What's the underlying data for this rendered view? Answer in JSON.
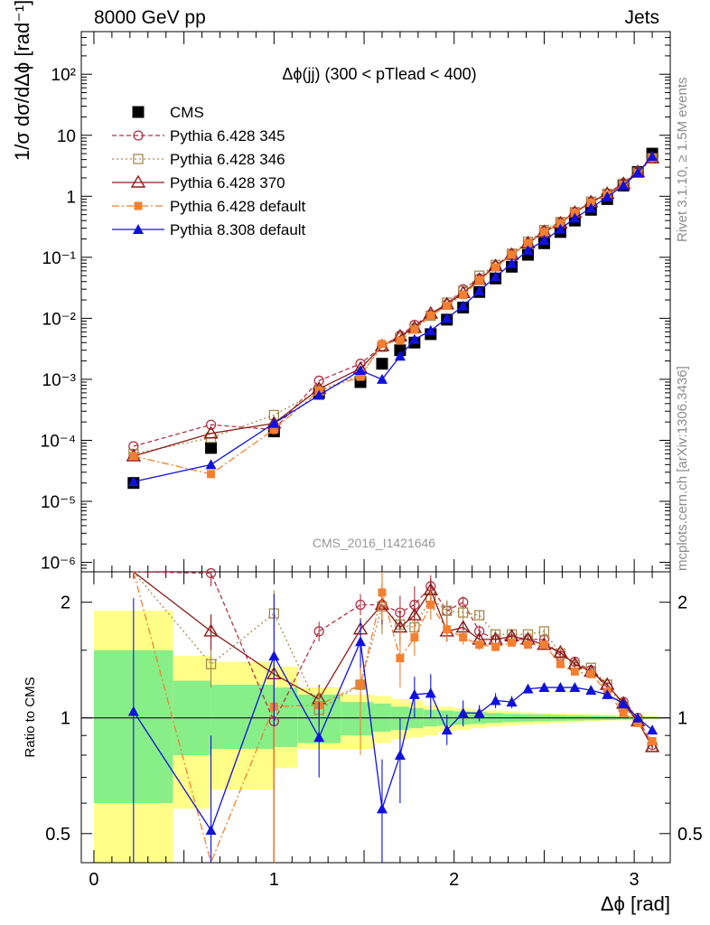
{
  "header": {
    "left": "8000 GeV pp",
    "right": "Jets",
    "side_top": "Rivet 3.1.10, ≥ 1.5M events",
    "side_bottom": "mcplots.cern.ch [arXiv:1306.3436]"
  },
  "chart_data": [
    {
      "type": "scatter",
      "panel": "main",
      "title": "Δϕ(jj) (300 < pTlead <  400)",
      "watermark": "CMS_2016_I1421646",
      "ylabel": "1/σ dσ/dΔϕ [rad⁻¹]",
      "yscale": "log",
      "ylim": [
        7e-07,
        500
      ],
      "xlim": [
        -0.07,
        3.2
      ],
      "y_tick_labels": [
        "10⁻⁶",
        "10⁻⁵",
        "10⁻⁴",
        "10⁻³",
        "10⁻²",
        "10⁻¹",
        "1",
        "10",
        "10²"
      ],
      "legend_position": "top-left",
      "series": [
        {
          "name": "CMS",
          "color": "#000000",
          "marker": "filled-square",
          "line": "none",
          "x": [
            0.22,
            0.65,
            1.0,
            1.25,
            1.48,
            1.6,
            1.7,
            1.78,
            1.87,
            1.96,
            2.05,
            2.14,
            2.23,
            2.32,
            2.41,
            2.5,
            2.59,
            2.67,
            2.76,
            2.85,
            2.94,
            3.02,
            3.1
          ],
          "y": [
            2e-05,
            7.5e-05,
            0.00014,
            0.0006,
            0.0009,
            0.0018,
            0.003,
            0.004,
            0.0055,
            0.0095,
            0.015,
            0.027,
            0.045,
            0.07,
            0.11,
            0.17,
            0.26,
            0.4,
            0.6,
            0.9,
            1.5,
            2.5,
            5.0
          ]
        },
        {
          "name": "Pythia 6.428 345",
          "color": "#b23246",
          "marker": "open-circle",
          "line": "dashed",
          "x": [
            0.22,
            0.65,
            1.0,
            1.25,
            1.48,
            1.6,
            1.7,
            1.78,
            1.87,
            1.96,
            2.05,
            2.14,
            2.23,
            2.32,
            2.41,
            2.5,
            2.59,
            2.67,
            2.76,
            2.85,
            2.94,
            3.02,
            3.1
          ],
          "y": [
            8e-05,
            0.00018,
            0.00015,
            0.00095,
            0.0018,
            0.0035,
            0.0052,
            0.0078,
            0.0115,
            0.017,
            0.03,
            0.045,
            0.072,
            0.112,
            0.17,
            0.27,
            0.37,
            0.55,
            0.8,
            1.1,
            1.65,
            2.5,
            4.2
          ]
        },
        {
          "name": "Pythia 6.428 346",
          "color": "#a68a4a",
          "marker": "open-square",
          "line": "dotted",
          "x": [
            0.22,
            0.65,
            1.0,
            1.25,
            1.48,
            1.6,
            1.7,
            1.78,
            1.87,
            1.96,
            2.05,
            2.14,
            2.23,
            2.32,
            2.41,
            2.5,
            2.59,
            2.67,
            2.76,
            2.85,
            2.94,
            3.02,
            3.1
          ],
          "y": [
            6e-05,
            0.00011,
            0.00026,
            0.00065,
            0.0012,
            0.0034,
            0.0048,
            0.0068,
            0.011,
            0.018,
            0.028,
            0.05,
            0.075,
            0.115,
            0.18,
            0.28,
            0.38,
            0.55,
            0.82,
            1.1,
            1.6,
            2.45,
            4.2
          ]
        },
        {
          "name": "Pythia 6.428 370",
          "color": "#8b1a1a",
          "marker": "open-triangle",
          "line": "solid",
          "x": [
            0.22,
            0.65,
            1.0,
            1.25,
            1.48,
            1.6,
            1.7,
            1.78,
            1.87,
            1.96,
            2.05,
            2.14,
            2.23,
            2.32,
            2.41,
            2.5,
            2.59,
            2.67,
            2.76,
            2.85,
            2.94,
            3.02,
            3.1
          ],
          "y": [
            5.5e-05,
            0.00013,
            0.00019,
            0.0007,
            0.0015,
            0.0035,
            0.0051,
            0.007,
            0.012,
            0.017,
            0.026,
            0.043,
            0.072,
            0.11,
            0.17,
            0.26,
            0.36,
            0.54,
            0.8,
            1.1,
            1.6,
            2.5,
            4.2
          ]
        },
        {
          "name": "Pythia 6.428 default",
          "color": "#f28030",
          "marker": "filled-square-small",
          "line": "dashdot",
          "x": [
            0.22,
            0.65,
            1.0,
            1.25,
            1.48,
            1.6,
            1.7,
            1.78,
            1.87,
            1.96,
            2.05,
            2.14,
            2.23,
            2.32,
            2.41,
            2.5,
            2.59,
            2.67,
            2.76,
            2.85,
            2.94,
            3.02,
            3.1
          ],
          "y": [
            5.5e-05,
            2.8e-05,
            0.00015,
            0.00065,
            0.0011,
            0.0038,
            0.0043,
            0.0065,
            0.011,
            0.016,
            0.024,
            0.042,
            0.068,
            0.11,
            0.17,
            0.26,
            0.36,
            0.53,
            0.78,
            1.05,
            1.55,
            2.4,
            4.3
          ]
        },
        {
          "name": "Pythia 8.308 default",
          "color": "#1010e0",
          "marker": "filled-triangle",
          "line": "solid",
          "x": [
            0.22,
            0.65,
            1.0,
            1.25,
            1.48,
            1.6,
            1.7,
            1.78,
            1.87,
            1.96,
            2.05,
            2.14,
            2.23,
            2.32,
            2.41,
            2.5,
            2.59,
            2.67,
            2.76,
            2.85,
            2.94,
            3.02,
            3.1
          ],
          "y": [
            2.1e-05,
            4e-05,
            0.00019,
            0.00055,
            0.0014,
            0.001,
            0.0024,
            0.0045,
            0.0063,
            0.01,
            0.016,
            0.028,
            0.048,
            0.079,
            0.13,
            0.19,
            0.29,
            0.44,
            0.64,
            0.98,
            1.5,
            2.45,
            4.5
          ]
        }
      ]
    },
    {
      "type": "scatter",
      "panel": "ratio",
      "xlabel": "Δϕ [rad]",
      "ylabel": "Ratio to CMS",
      "yscale": "log",
      "ylim": [
        0.42,
        2.4
      ],
      "xlim": [
        -0.07,
        3.2
      ],
      "x_tick_labels": [
        "0",
        "1",
        "2",
        "3"
      ],
      "y_tick_labels": [
        "0.5",
        "1",
        "2"
      ],
      "reference_line": 1,
      "bands": {
        "colors": {
          "stat": "#88ee88",
          "total": "#ffff88"
        },
        "edges": [
          0.0,
          0.44,
          0.65,
          1.0,
          1.13,
          1.37,
          1.55,
          1.65,
          1.75,
          1.83,
          1.91,
          2.0,
          2.09,
          2.18,
          2.27,
          2.36,
          2.45,
          2.54,
          2.63,
          2.72,
          2.81,
          2.9,
          2.99,
          3.06,
          3.14
        ],
        "stat_lo": [
          0.6,
          0.8,
          0.83,
          0.84,
          0.86,
          0.9,
          0.92,
          0.93,
          0.94,
          0.95,
          0.955,
          0.96,
          0.965,
          0.97,
          0.975,
          0.978,
          0.98,
          0.982,
          0.984,
          0.986,
          0.988,
          0.99,
          0.992,
          0.994
        ],
        "stat_hi": [
          1.5,
          1.25,
          1.22,
          1.2,
          1.15,
          1.1,
          1.09,
          1.07,
          1.06,
          1.05,
          1.045,
          1.04,
          1.035,
          1.03,
          1.025,
          1.022,
          1.02,
          1.018,
          1.016,
          1.014,
          1.012,
          1.01,
          1.008,
          1.006
        ],
        "total_lo": [
          0.36,
          0.58,
          0.65,
          0.74,
          0.83,
          0.83,
          0.86,
          0.88,
          0.89,
          0.9,
          0.92,
          0.93,
          0.94,
          0.95,
          0.955,
          0.96,
          0.965,
          0.97,
          0.975,
          0.98,
          0.983,
          0.985,
          0.988,
          0.99
        ],
        "total_hi": [
          1.9,
          1.45,
          1.4,
          1.36,
          1.2,
          1.15,
          1.14,
          1.12,
          1.11,
          1.08,
          1.07,
          1.06,
          1.05,
          1.045,
          1.04,
          1.035,
          1.03,
          1.028,
          1.025,
          1.022,
          1.02,
          1.018,
          1.015,
          1.012
        ]
      },
      "series": [
        {
          "name": "Pythia 6.428 345",
          "x": [
            0.22,
            0.65,
            1.0,
            1.25,
            1.48,
            1.6,
            1.7,
            1.78,
            1.87,
            1.96,
            2.05,
            2.14,
            2.23,
            2.32,
            2.41,
            2.5,
            2.59,
            2.67,
            2.76,
            2.85,
            2.94,
            3.02,
            3.1
          ],
          "ratio": [
            3.8,
            2.38,
            0.98,
            1.68,
            1.97,
            1.97,
            1.88,
            1.97,
            2.2,
            1.9,
            2.0,
            1.68,
            1.6,
            1.6,
            1.6,
            1.6,
            1.45,
            1.4,
            1.33,
            1.2,
            1.1,
            1.0,
            0.85
          ],
          "err_lo": [
            3.4,
            2.2,
            0.0,
            1.58,
            1.85,
            1.7,
            1.68,
            1.75,
            2.05,
            1.78,
            1.93,
            1.62,
            1.55,
            1.56,
            1.56,
            1.57,
            1.42,
            1.38,
            1.31,
            1.19,
            1.09,
            0.99,
            0.84
          ],
          "err_hi": [
            4.2,
            2.6,
            1.1,
            1.78,
            2.1,
            2.25,
            2.08,
            2.2,
            2.35,
            2.02,
            2.07,
            1.74,
            1.65,
            1.64,
            1.64,
            1.63,
            1.48,
            1.42,
            1.35,
            1.21,
            1.11,
            1.01,
            0.86
          ]
        },
        {
          "name": "Pythia 6.428 346",
          "x": [
            0.22,
            0.65,
            1.0,
            1.25,
            1.48,
            1.6,
            1.7,
            1.78,
            1.87,
            1.96,
            2.05,
            2.14,
            2.23,
            2.32,
            2.41,
            2.5,
            2.59,
            2.67,
            2.76,
            2.85,
            2.94,
            3.02,
            3.1
          ],
          "ratio": [
            3.0,
            1.38,
            1.87,
            1.05,
            1.22,
            1.95,
            1.75,
            1.72,
            2.05,
            1.9,
            1.88,
            1.85,
            1.65,
            1.65,
            1.65,
            1.68,
            1.47,
            1.37,
            1.35,
            1.22,
            1.07,
            0.98,
            0.84
          ],
          "err_lo": [
            2.7,
            1.2,
            1.6,
            0.95,
            1.1,
            1.65,
            1.55,
            1.55,
            1.9,
            1.78,
            1.8,
            1.8,
            1.61,
            1.62,
            1.62,
            1.65,
            1.45,
            1.35,
            1.33,
            1.21,
            1.06,
            0.97,
            0.83
          ],
          "err_hi": [
            3.3,
            1.55,
            2.15,
            1.15,
            1.35,
            2.25,
            1.95,
            1.9,
            2.2,
            2.02,
            1.96,
            1.9,
            1.69,
            1.68,
            1.68,
            1.71,
            1.49,
            1.39,
            1.37,
            1.23,
            1.08,
            0.99,
            0.85
          ]
        },
        {
          "name": "Pythia 6.428 370",
          "x": [
            0.22,
            0.65,
            1.0,
            1.25,
            1.48,
            1.6,
            1.7,
            1.78,
            1.87,
            1.96,
            2.05,
            2.14,
            2.23,
            2.32,
            2.41,
            2.5,
            2.59,
            2.67,
            2.76,
            2.85,
            2.94,
            3.02,
            3.1
          ],
          "ratio": [
            2.6,
            1.68,
            1.3,
            1.12,
            1.7,
            1.97,
            1.72,
            1.85,
            2.15,
            1.68,
            1.72,
            1.6,
            1.6,
            1.63,
            1.6,
            1.55,
            1.48,
            1.38,
            1.32,
            1.22,
            1.09,
            0.98,
            0.84
          ],
          "err_lo": [
            2.3,
            1.5,
            0.0,
            1.02,
            1.58,
            1.75,
            1.55,
            1.68,
            2.0,
            1.58,
            1.65,
            1.55,
            1.56,
            1.6,
            1.57,
            1.52,
            1.46,
            1.36,
            1.3,
            1.21,
            1.08,
            0.97,
            0.83
          ],
          "err_hi": [
            2.9,
            1.86,
            1.5,
            1.22,
            1.82,
            2.2,
            1.9,
            2.02,
            2.3,
            1.78,
            1.79,
            1.65,
            1.64,
            1.66,
            1.63,
            1.58,
            1.5,
            1.4,
            1.34,
            1.23,
            1.1,
            0.99,
            0.85
          ]
        },
        {
          "name": "Pythia 6.428 default",
          "x": [
            0.22,
            0.65,
            1.0,
            1.25,
            1.48,
            1.6,
            1.7,
            1.78,
            1.87,
            1.96,
            2.05,
            2.14,
            2.23,
            2.32,
            2.41,
            2.5,
            2.59,
            2.67,
            2.76,
            2.85,
            2.94,
            3.02,
            3.1
          ],
          "ratio": [
            2.75,
            0.38,
            1.07,
            1.08,
            1.22,
            2.12,
            1.43,
            1.62,
            1.97,
            1.7,
            1.62,
            1.55,
            1.53,
            1.57,
            1.55,
            1.55,
            1.38,
            1.32,
            1.3,
            1.17,
            1.03,
            0.97,
            0.87
          ],
          "err_lo": [
            2.4,
            0.2,
            0.0,
            0.95,
            0.8,
            1.8,
            1.2,
            1.45,
            1.8,
            1.58,
            1.55,
            1.5,
            1.49,
            1.54,
            1.52,
            1.52,
            1.36,
            1.3,
            1.28,
            1.16,
            1.02,
            0.96,
            0.86
          ],
          "err_hi": [
            3.1,
            0.6,
            1.3,
            1.2,
            1.65,
            2.45,
            1.7,
            1.8,
            2.15,
            1.82,
            1.69,
            1.6,
            1.57,
            1.6,
            1.58,
            1.58,
            1.4,
            1.34,
            1.32,
            1.18,
            1.04,
            0.98,
            0.88
          ]
        },
        {
          "name": "Pythia 8.308 default",
          "x": [
            0.22,
            0.65,
            1.0,
            1.25,
            1.48,
            1.6,
            1.7,
            1.78,
            1.87,
            1.96,
            2.05,
            2.14,
            2.23,
            2.32,
            2.41,
            2.5,
            2.59,
            2.67,
            2.76,
            2.85,
            2.94,
            3.02,
            3.1
          ],
          "ratio": [
            1.04,
            0.51,
            1.45,
            0.89,
            1.58,
            0.58,
            0.8,
            1.15,
            1.16,
            0.93,
            1.03,
            1.03,
            1.11,
            1.1,
            1.19,
            1.2,
            1.2,
            1.2,
            1.18,
            1.15,
            1.09,
            1.0,
            0.93
          ],
          "err_lo": [
            0.0,
            0.0,
            0.95,
            0.7,
            1.35,
            0.0,
            0.6,
            1.0,
            1.0,
            0.85,
            0.95,
            0.98,
            1.06,
            1.06,
            1.16,
            1.17,
            1.18,
            1.18,
            1.16,
            1.14,
            1.08,
            0.99,
            0.92
          ],
          "err_hi": [
            2.05,
            0.9,
            2.1,
            1.1,
            1.8,
            0.78,
            1.0,
            1.28,
            1.3,
            1.02,
            1.11,
            1.08,
            1.16,
            1.14,
            1.22,
            1.23,
            1.22,
            1.22,
            1.2,
            1.16,
            1.1,
            1.01,
            0.94
          ]
        }
      ]
    }
  ]
}
